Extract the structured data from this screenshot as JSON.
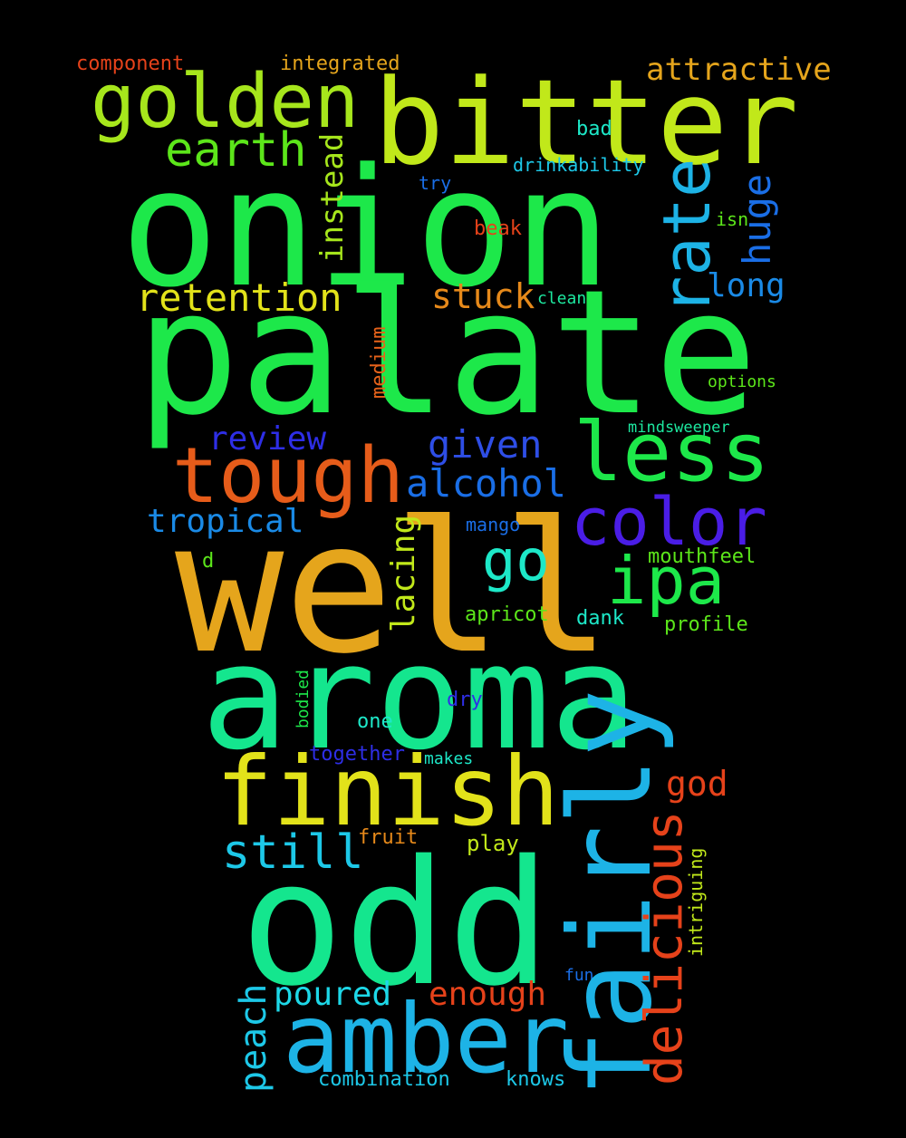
{
  "words": [
    {
      "text": "onion",
      "color": "#1de84a"
    },
    {
      "text": "palate",
      "color": "#1de84a"
    },
    {
      "text": "well",
      "color": "#e5a51c"
    },
    {
      "text": "aroma",
      "color": "#14e68e"
    },
    {
      "text": "odd",
      "color": "#14e68e"
    },
    {
      "text": "bitter",
      "color": "#c1e81a"
    },
    {
      "text": "fairly",
      "color": "#1db3e6"
    },
    {
      "text": "amber",
      "color": "#1db3e6"
    },
    {
      "text": "finish",
      "color": "#e2e21a"
    },
    {
      "text": "golden",
      "color": "#a6e61c"
    },
    {
      "text": "tough",
      "color": "#e65c1a"
    },
    {
      "text": "less",
      "color": "#1de84a"
    },
    {
      "text": "color",
      "color": "#4a1de6"
    },
    {
      "text": "ipa",
      "color": "#1de84a"
    },
    {
      "text": "rate",
      "color": "#1db3e6"
    },
    {
      "text": "delicious",
      "color": "#e6421a"
    },
    {
      "text": "earth",
      "color": "#5ce61a"
    },
    {
      "text": "retention",
      "color": "#e2e21a"
    },
    {
      "text": "go",
      "color": "#1de8c8"
    },
    {
      "text": "still",
      "color": "#1dc8e8"
    },
    {
      "text": "alcohol",
      "color": "#1a6ee6"
    },
    {
      "text": "given",
      "color": "#2e4ee6"
    },
    {
      "text": "stuck",
      "color": "#e6891a"
    },
    {
      "text": "review",
      "color": "#2e2ee6"
    },
    {
      "text": "tropical",
      "color": "#1a8ae6"
    },
    {
      "text": "huge",
      "color": "#1a6ee6"
    },
    {
      "text": "instead",
      "color": "#a6e61c"
    },
    {
      "text": "long",
      "color": "#1a8ae6"
    },
    {
      "text": "attractive",
      "color": "#e5a51c"
    },
    {
      "text": "lacing",
      "color": "#c1e81a"
    },
    {
      "text": "enough",
      "color": "#e6421a"
    },
    {
      "text": "poured",
      "color": "#1dd8e8"
    },
    {
      "text": "peach",
      "color": "#1dc8e8"
    },
    {
      "text": "god",
      "color": "#e6421a"
    },
    {
      "text": "combination",
      "color": "#1dc8e8"
    },
    {
      "text": "knows",
      "color": "#1dc8e8"
    },
    {
      "text": "component",
      "color": "#e6421a"
    },
    {
      "text": "integrated",
      "color": "#e5a51c"
    },
    {
      "text": "bad",
      "color": "#1de8c8"
    },
    {
      "text": "drinkability",
      "color": "#1dc8e8"
    },
    {
      "text": "try",
      "color": "#1a6ee6"
    },
    {
      "text": "isn",
      "color": "#5ce61a"
    },
    {
      "text": "beak",
      "color": "#e6421a"
    },
    {
      "text": "clean",
      "color": "#1de8a0"
    },
    {
      "text": "medium",
      "color": "#e6621a"
    },
    {
      "text": "options",
      "color": "#5ce61a"
    },
    {
      "text": "mindsweeper",
      "color": "#1de8a0"
    },
    {
      "text": "mango",
      "color": "#1a6ee6"
    },
    {
      "text": "mouthfeel",
      "color": "#5ce61a"
    },
    {
      "text": "d",
      "color": "#5ce61a"
    },
    {
      "text": "apricot",
      "color": "#5ce61a"
    },
    {
      "text": "dank",
      "color": "#1de8c8"
    },
    {
      "text": "profile",
      "color": "#5ce61a"
    },
    {
      "text": "dry",
      "color": "#2e2ee6"
    },
    {
      "text": "bodied",
      "color": "#1de84a"
    },
    {
      "text": "one",
      "color": "#1de8c8"
    },
    {
      "text": "together",
      "color": "#2e2ee6"
    },
    {
      "text": "makes",
      "color": "#1de8c8"
    },
    {
      "text": "fruit",
      "color": "#e6891a"
    },
    {
      "text": "play",
      "color": "#c1e81a"
    },
    {
      "text": "intriguing",
      "color": "#c1e81a"
    },
    {
      "text": "fun",
      "color": "#1a6ee6"
    }
  ]
}
